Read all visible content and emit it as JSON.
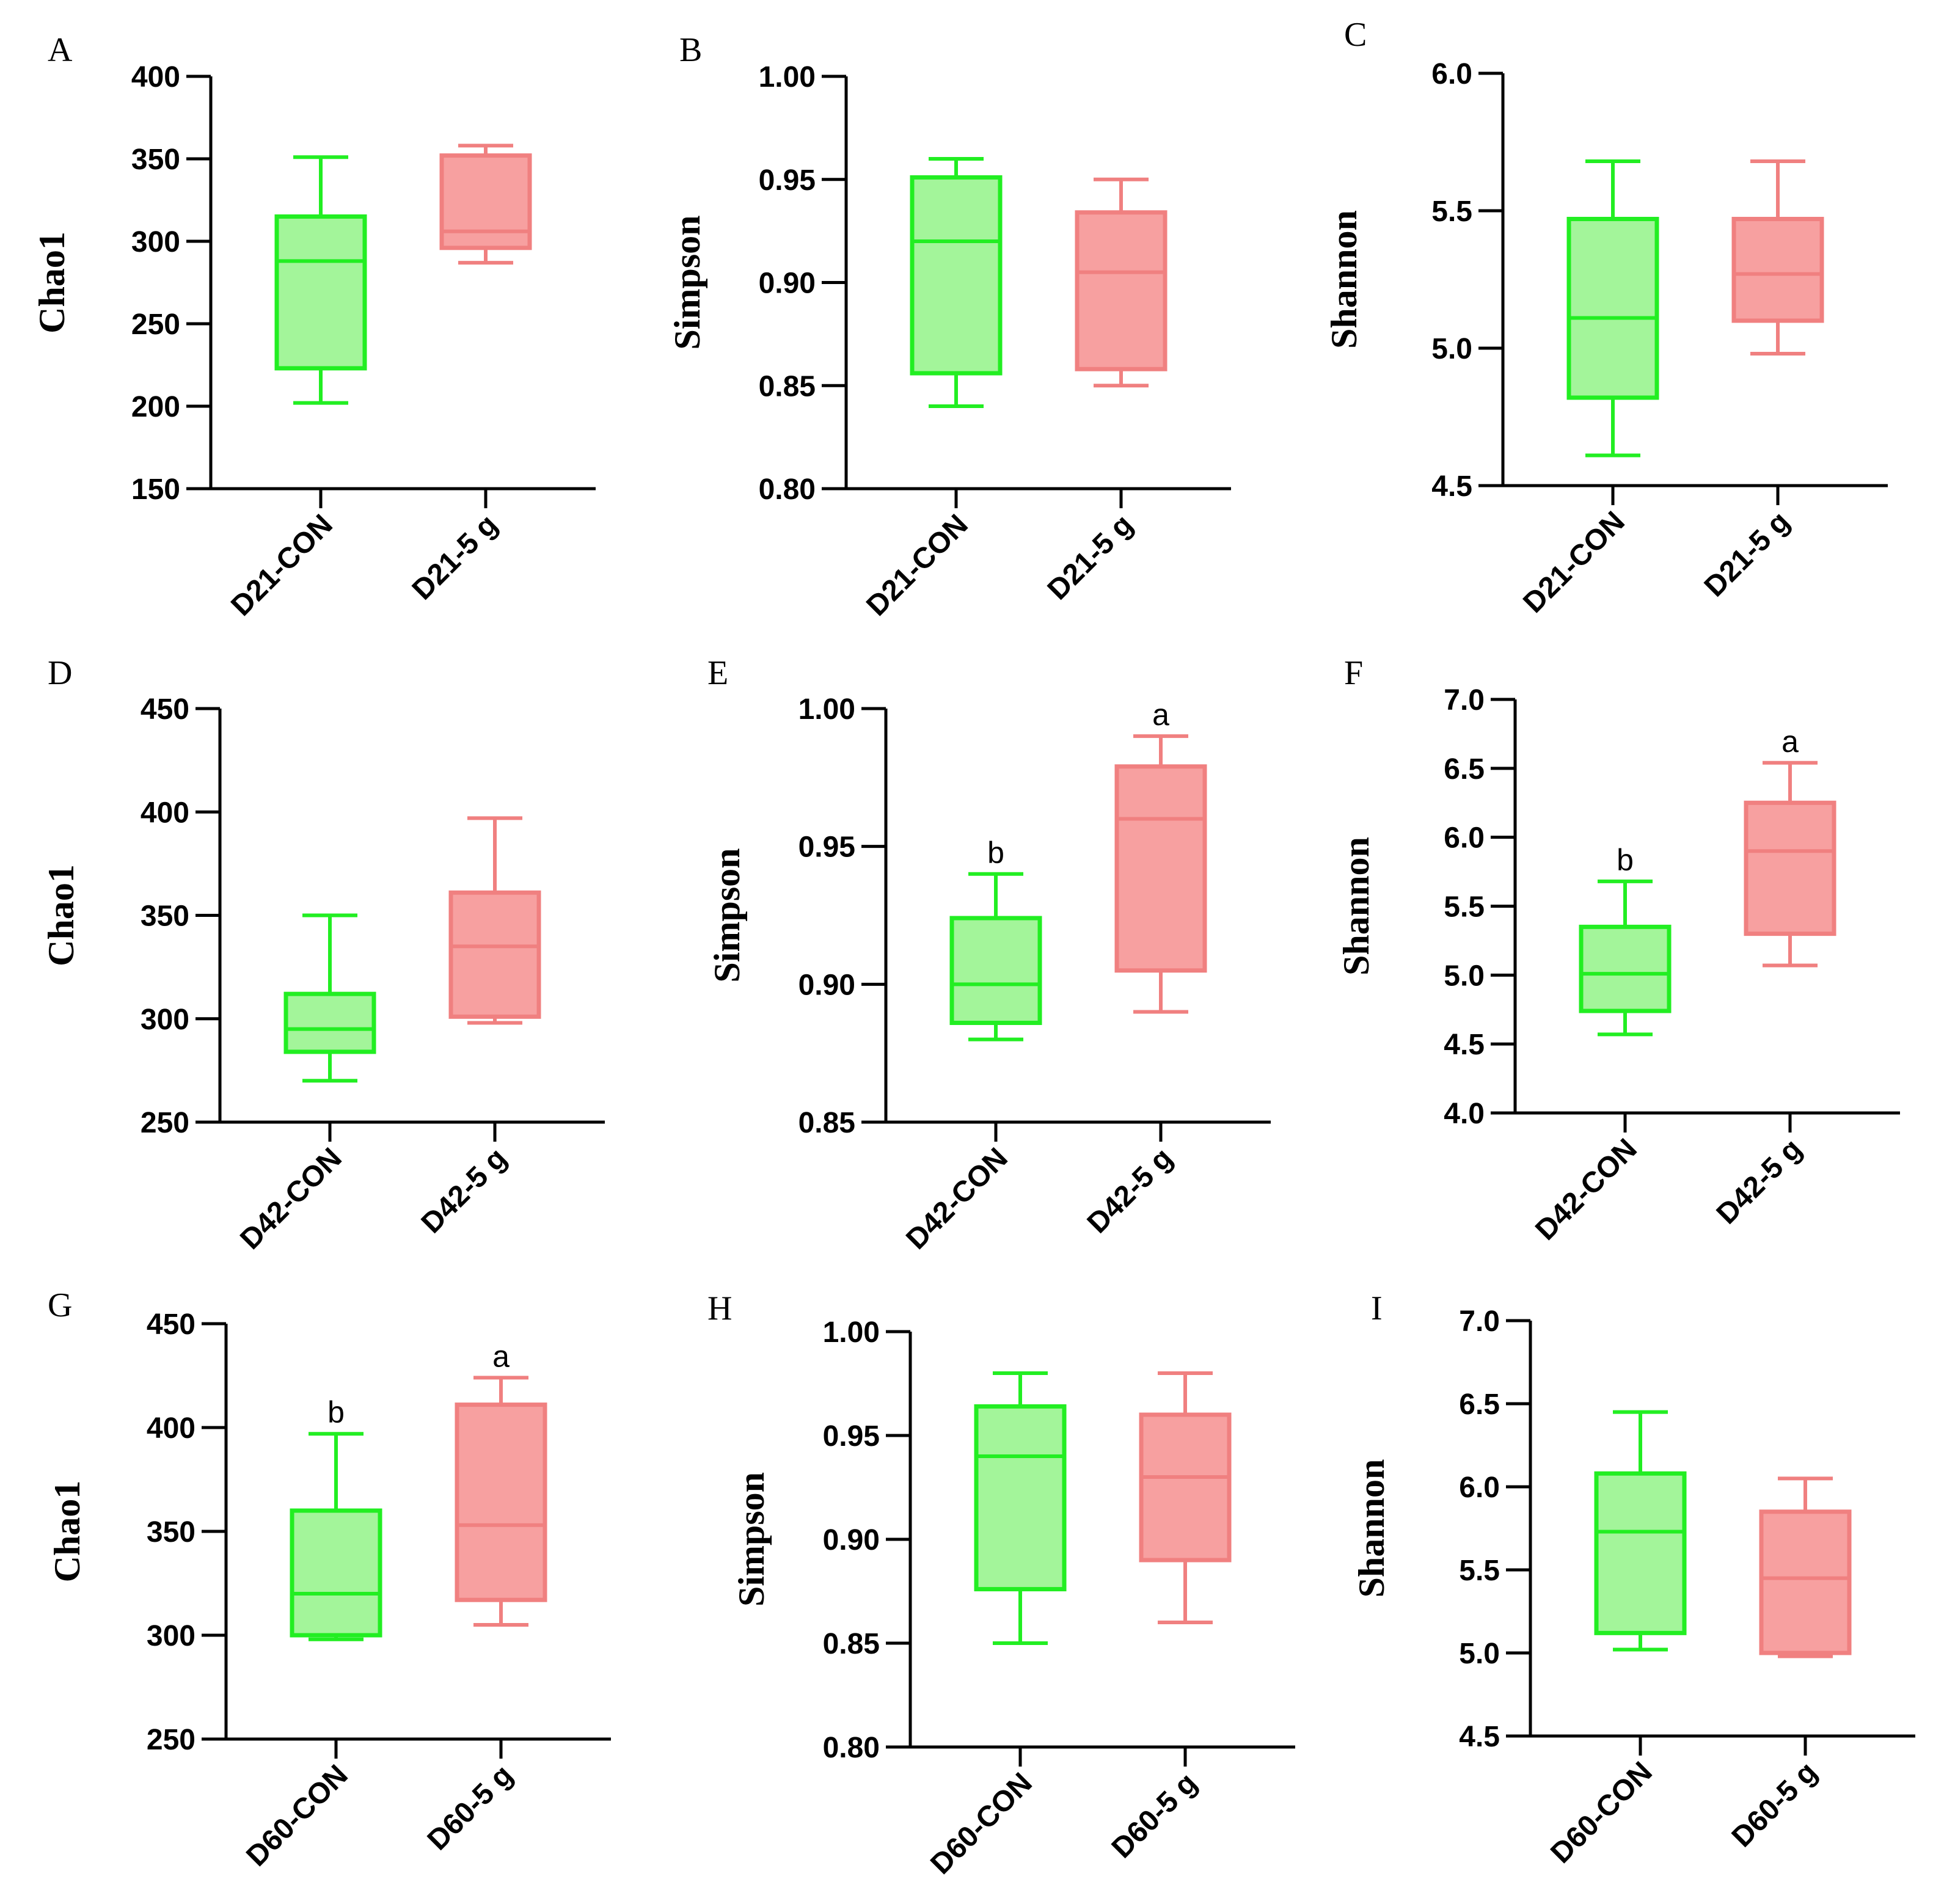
{
  "colors": {
    "con_stroke": "#22ee22",
    "con_fill": "#a3f59a",
    "trt_stroke": "#f08080",
    "trt_fill": "#f7a0a0",
    "axis": "#000000"
  },
  "chart_data": [
    {
      "type": "box",
      "panel": "A",
      "ylabel": "Chao1",
      "ylim": [
        150,
        400
      ],
      "yticks": [
        150,
        200,
        250,
        300,
        350,
        400
      ],
      "tick_format": "0",
      "boxes": [
        {
          "category": "D21-CON",
          "group": "con",
          "min": 202,
          "q1": 223,
          "median": 288,
          "q3": 315,
          "max": 351,
          "sig": ""
        },
        {
          "category": "D21-5 g",
          "group": "trt",
          "min": 287,
          "q1": 296,
          "median": 306,
          "q3": 352,
          "max": 358,
          "sig": ""
        }
      ]
    },
    {
      "type": "box",
      "panel": "B",
      "ylabel": "Simpson",
      "ylim": [
        0.8,
        1.0
      ],
      "yticks": [
        0.8,
        0.85,
        0.9,
        0.95,
        1.0
      ],
      "tick_format": "2",
      "boxes": [
        {
          "category": "D21-CON",
          "group": "con",
          "min": 0.84,
          "q1": 0.856,
          "median": 0.92,
          "q3": 0.951,
          "max": 0.96,
          "sig": ""
        },
        {
          "category": "D21-5 g",
          "group": "trt",
          "min": 0.85,
          "q1": 0.858,
          "median": 0.905,
          "q3": 0.934,
          "max": 0.95,
          "sig": ""
        }
      ]
    },
    {
      "type": "box",
      "panel": "C",
      "ylabel": "Shannon",
      "ylim": [
        4.5,
        6.0
      ],
      "yticks": [
        4.5,
        5.0,
        5.5,
        6.0
      ],
      "tick_format": "1",
      "boxes": [
        {
          "category": "D21-CON",
          "group": "con",
          "min": 4.61,
          "q1": 4.82,
          "median": 5.11,
          "q3": 5.47,
          "max": 5.68,
          "sig": ""
        },
        {
          "category": "D21-5 g",
          "group": "trt",
          "min": 4.98,
          "q1": 5.1,
          "median": 5.27,
          "q3": 5.47,
          "max": 5.68,
          "sig": ""
        }
      ]
    },
    {
      "type": "box",
      "panel": "D",
      "ylabel": "Chao1",
      "ylim": [
        250,
        450
      ],
      "yticks": [
        250,
        300,
        350,
        400,
        450
      ],
      "tick_format": "0",
      "boxes": [
        {
          "category": "D42-CON",
          "group": "con",
          "min": 270,
          "q1": 284,
          "median": 295,
          "q3": 312,
          "max": 350,
          "sig": ""
        },
        {
          "category": "D42-5 g",
          "group": "trt",
          "min": 298,
          "q1": 301,
          "median": 335,
          "q3": 361,
          "max": 397,
          "sig": ""
        }
      ]
    },
    {
      "type": "box",
      "panel": "E",
      "ylabel": "Simpson",
      "ylim": [
        0.85,
        1.0
      ],
      "yticks": [
        0.85,
        0.9,
        0.95,
        1.0
      ],
      "tick_format": "2",
      "boxes": [
        {
          "category": "D42-CON",
          "group": "con",
          "min": 0.88,
          "q1": 0.886,
          "median": 0.9,
          "q3": 0.924,
          "max": 0.94,
          "sig": "b"
        },
        {
          "category": "D42-5 g",
          "group": "trt",
          "min": 0.89,
          "q1": 0.905,
          "median": 0.96,
          "q3": 0.979,
          "max": 0.99,
          "sig": "a"
        }
      ]
    },
    {
      "type": "box",
      "panel": "F",
      "ylabel": "Shannon",
      "ylim": [
        4.0,
        7.0
      ],
      "yticks": [
        4.0,
        4.5,
        5.0,
        5.5,
        6.0,
        6.5,
        7.0
      ],
      "tick_format": "1",
      "boxes": [
        {
          "category": "D42-CON",
          "group": "con",
          "min": 4.57,
          "q1": 4.74,
          "median": 5.01,
          "q3": 5.35,
          "max": 5.68,
          "sig": "b"
        },
        {
          "category": "D42-5 g",
          "group": "trt",
          "min": 5.07,
          "q1": 5.3,
          "median": 5.9,
          "q3": 6.25,
          "max": 6.54,
          "sig": "a"
        }
      ]
    },
    {
      "type": "box",
      "panel": "G",
      "ylabel": "Chao1",
      "ylim": [
        250,
        450
      ],
      "yticks": [
        250,
        300,
        350,
        400,
        450
      ],
      "tick_format": "0",
      "boxes": [
        {
          "category": "D60-CON",
          "group": "con",
          "min": 298,
          "q1": 300,
          "median": 320,
          "q3": 360,
          "max": 397,
          "sig": "b"
        },
        {
          "category": "D60-5 g",
          "group": "trt",
          "min": 305,
          "q1": 317,
          "median": 353,
          "q3": 411,
          "max": 424,
          "sig": "a"
        }
      ]
    },
    {
      "type": "box",
      "panel": "H",
      "ylabel": "Simpson",
      "ylim": [
        0.8,
        1.0
      ],
      "yticks": [
        0.8,
        0.85,
        0.9,
        0.95,
        1.0
      ],
      "tick_format": "2",
      "boxes": [
        {
          "category": "D60-CON",
          "group": "con",
          "min": 0.85,
          "q1": 0.876,
          "median": 0.94,
          "q3": 0.964,
          "max": 0.98,
          "sig": ""
        },
        {
          "category": "D60-5 g",
          "group": "trt",
          "min": 0.86,
          "q1": 0.89,
          "median": 0.93,
          "q3": 0.96,
          "max": 0.98,
          "sig": ""
        }
      ]
    },
    {
      "type": "box",
      "panel": "I",
      "ylabel": "Shannon",
      "ylim": [
        4.5,
        7.0
      ],
      "yticks": [
        4.5,
        5.0,
        5.5,
        6.0,
        6.5,
        7.0
      ],
      "tick_format": "1",
      "boxes": [
        {
          "category": "D60-CON",
          "group": "con",
          "min": 5.02,
          "q1": 5.12,
          "median": 5.73,
          "q3": 6.08,
          "max": 6.45,
          "sig": ""
        },
        {
          "category": "D60-5 g",
          "group": "trt",
          "min": 4.98,
          "q1": 5.0,
          "median": 5.45,
          "q3": 5.85,
          "max": 6.05,
          "sig": ""
        }
      ]
    }
  ]
}
